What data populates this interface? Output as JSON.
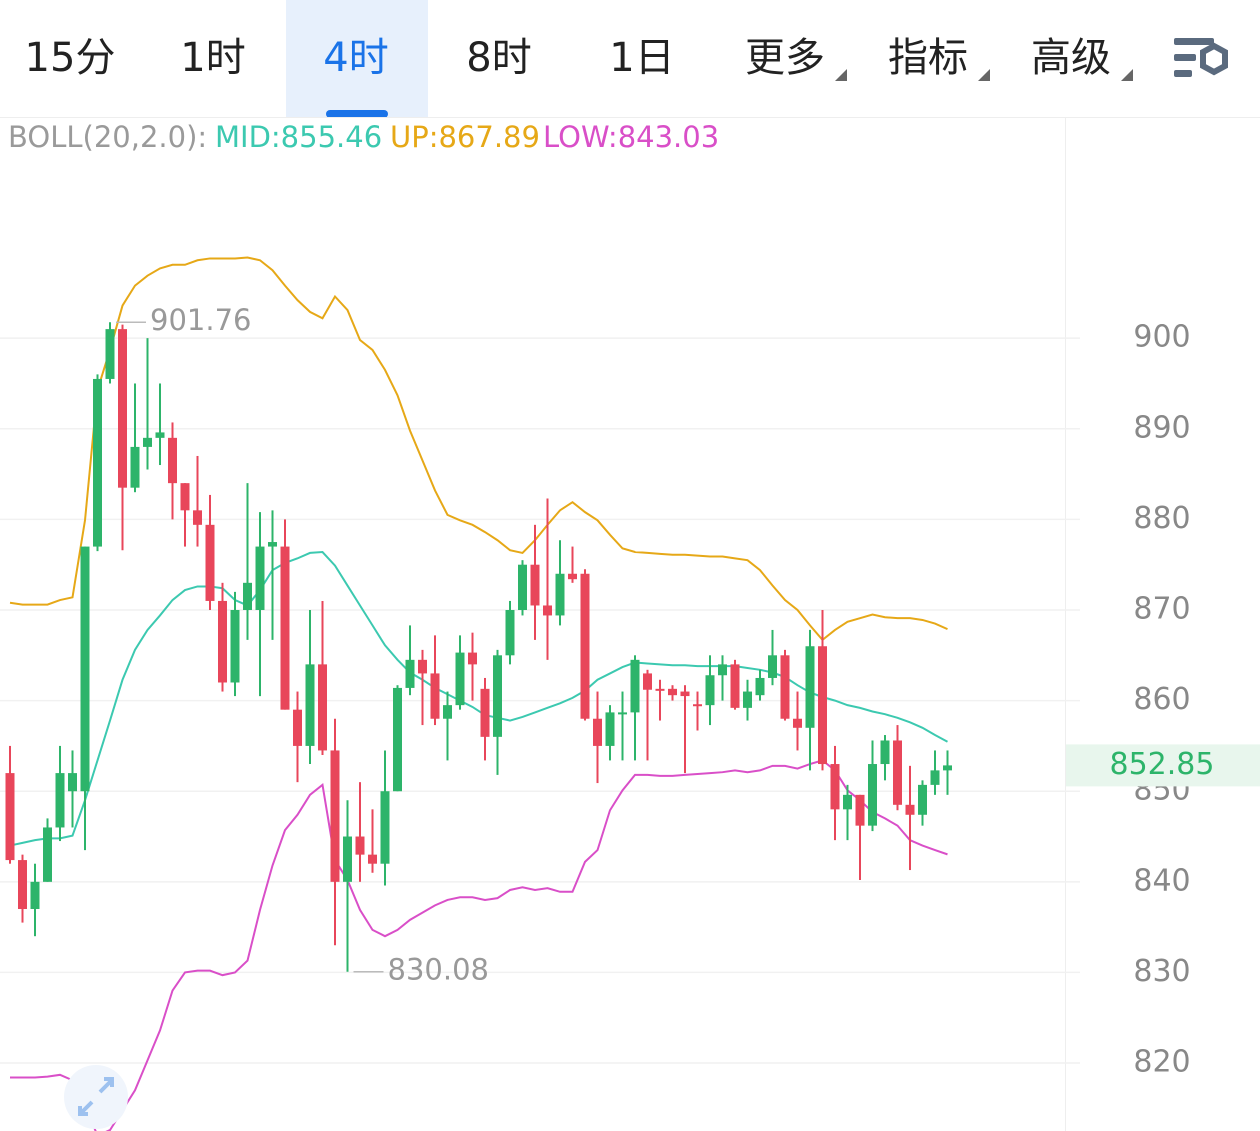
{
  "tabs": [
    {
      "label": "15分",
      "menu": false
    },
    {
      "label": "1时",
      "menu": false
    },
    {
      "label": "4时",
      "menu": false
    },
    {
      "label": "8时",
      "menu": false
    },
    {
      "label": "1日",
      "menu": false
    },
    {
      "label": "更多",
      "menu": true
    },
    {
      "label": "指标",
      "menu": true
    },
    {
      "label": "高级",
      "menu": true
    }
  ],
  "active_tab": 2,
  "chart_data": {
    "type": "candlestick",
    "indicator_label": "BOLL(20,2.0):",
    "ylim": [
      812.5,
      924.3
    ],
    "yticks": [
      820,
      830,
      840,
      850,
      860,
      870,
      880,
      890,
      900
    ],
    "grid": true,
    "up_color": "#2db46a",
    "down_color": "#e8465a",
    "open": [
      852,
      842.4,
      837,
      840,
      846,
      850,
      850,
      877,
      895.5,
      901,
      883.5,
      888,
      889,
      889,
      884,
      881,
      879.4,
      871,
      862,
      870,
      870,
      877,
      877,
      859,
      855,
      864,
      854.5,
      840,
      845,
      843,
      842,
      850,
      861.4,
      864.5,
      863,
      858,
      859.5,
      865.3,
      861.3,
      856,
      865,
      870,
      875,
      870.5,
      869.4,
      874,
      874,
      858,
      855,
      858.5,
      858.7,
      863,
      861.3,
      861.3,
      861,
      859.6,
      859.5,
      862.8,
      864,
      859.2,
      860.6,
      862.5,
      865,
      858,
      857,
      866,
      853,
      848,
      849.6,
      846.2,
      853,
      855.6,
      848.5,
      847.4,
      850.7,
      852.3
    ],
    "high": [
      855,
      843,
      842,
      847,
      855,
      854.5,
      877,
      896,
      901.76,
      901.5,
      895,
      900,
      895,
      890.7,
      884,
      887,
      882.7,
      873,
      872,
      884,
      880.8,
      881,
      880,
      861,
      870,
      871,
      858,
      849,
      851,
      848,
      854.5,
      861.7,
      868.3,
      865.6,
      867.2,
      861,
      867.2,
      867.5,
      862.5,
      865.6,
      871,
      875.5,
      879.4,
      882.3,
      877.7,
      877,
      874.5,
      861,
      859.5,
      861,
      865,
      863.4,
      862.3,
      861.7,
      861.7,
      861,
      865,
      865,
      864.5,
      862.3,
      863.4,
      867.8,
      865.6,
      861,
      867.8,
      870,
      855,
      850.7,
      849.6,
      855.6,
      856.2,
      857.3,
      852.8,
      851.2,
      854.5,
      854.5
    ],
    "low": [
      842,
      835.5,
      834,
      840,
      844.5,
      846,
      843.5,
      876.5,
      895,
      876.6,
      883,
      885.5,
      886,
      880,
      877,
      877,
      870,
      861,
      860.5,
      866.7,
      860.5,
      866.7,
      859,
      851,
      853,
      854,
      833,
      830.08,
      840,
      841,
      839.6,
      850,
      860.6,
      857.3,
      857.3,
      853.4,
      859,
      860,
      853.4,
      851.8,
      864,
      869.4,
      866.7,
      864.5,
      868.3,
      873,
      857.8,
      850.9,
      853.4,
      853.4,
      853.4,
      853.4,
      857.8,
      860,
      852,
      856.7,
      857.3,
      860,
      859,
      857.8,
      860,
      861.7,
      857.8,
      854.5,
      852.3,
      852.3,
      844.6,
      844.6,
      840.2,
      845.6,
      851.2,
      847.9,
      841.3,
      846.2,
      849.6,
      849.6
    ],
    "close": [
      842.4,
      837,
      840,
      846,
      852,
      852,
      877,
      895.5,
      901,
      883.5,
      888,
      889,
      889.6,
      884,
      881,
      879.4,
      871,
      862,
      870,
      873,
      877,
      877.5,
      859,
      855,
      864,
      854.5,
      840,
      845,
      843,
      842,
      850,
      861.4,
      864.5,
      863,
      858,
      859.5,
      865.3,
      864,
      856,
      865,
      870,
      875,
      870.5,
      869.4,
      874,
      873.4,
      858,
      855,
      858.7,
      858.7,
      864.5,
      861.2,
      861.2,
      860.6,
      860.5,
      859.5,
      862.8,
      864,
      859.2,
      861,
      862.5,
      865,
      858,
      857,
      866,
      853,
      848,
      849.6,
      846.2,
      853,
      855.6,
      848.5,
      847.4,
      850.7,
      852.3,
      852.85
    ],
    "bands": [
      {
        "label": "MID:855.46",
        "color": "#3cc9b0",
        "values": [
          844.0,
          844.3,
          844.6,
          844.8,
          844.8,
          845.1,
          849.0,
          853.4,
          857.8,
          862.3,
          865.6,
          867.8,
          869.4,
          871.1,
          872.2,
          872.6,
          872.6,
          872.4,
          871.1,
          870.5,
          872.2,
          874.4,
          875.2,
          875.7,
          876.3,
          876.4,
          874.9,
          872.7,
          870.5,
          868.3,
          866.1,
          864.5,
          863.1,
          862.3,
          861.4,
          860.7,
          860.0,
          859.3,
          858.4,
          858.1,
          857.8,
          858.2,
          858.7,
          859.2,
          859.7,
          860.3,
          861.1,
          862.3,
          863.0,
          863.7,
          864.2,
          864.1,
          864.0,
          863.9,
          863.9,
          863.8,
          863.8,
          863.8,
          863.8,
          863.6,
          863.4,
          863.1,
          862.6,
          861.7,
          860.9,
          860.4,
          860.0,
          859.5,
          859.2,
          858.8,
          858.5,
          858.1,
          857.6,
          857.0,
          856.2,
          855.46
        ]
      },
      {
        "label": "UP:867.89",
        "color": "#e6a817",
        "values": [
          870.8,
          870.6,
          870.6,
          870.6,
          871.1,
          871.4,
          879.9,
          894.3,
          898.7,
          903.6,
          905.8,
          906.9,
          907.7,
          908.1,
          908.1,
          908.6,
          908.8,
          908.8,
          908.8,
          908.9,
          908.6,
          907.5,
          905.8,
          904.2,
          902.9,
          902.2,
          904.6,
          903.1,
          899.8,
          898.7,
          896.5,
          893.7,
          889.8,
          886.5,
          883.2,
          880.5,
          879.9,
          879.4,
          878.6,
          877.7,
          876.6,
          876.3,
          877.7,
          879.4,
          881.0,
          881.9,
          880.8,
          879.9,
          878.3,
          876.8,
          876.4,
          876.3,
          876.2,
          876.1,
          876.1,
          876.0,
          875.9,
          875.9,
          875.7,
          875.5,
          874.4,
          872.7,
          871.1,
          870.0,
          868.3,
          866.7,
          867.8,
          868.7,
          869.1,
          869.5,
          869.2,
          869.1,
          869.1,
          868.9,
          868.5,
          867.89
        ]
      },
      {
        "label": "LOW:843.03",
        "color": "#d94fc8",
        "values": [
          818.4,
          818.4,
          818.4,
          818.5,
          818.7,
          818.1,
          815.3,
          812.0,
          812.6,
          814.8,
          817.0,
          820.3,
          823.6,
          828.0,
          830.0,
          830.2,
          830.2,
          829.7,
          830.0,
          831.3,
          836.9,
          841.8,
          845.7,
          847.4,
          849.6,
          850.7,
          842.4,
          840.2,
          836.9,
          834.7,
          834.0,
          834.7,
          835.8,
          836.6,
          837.4,
          838.0,
          838.3,
          838.3,
          838.0,
          838.2,
          839.1,
          839.4,
          839.1,
          839.3,
          838.9,
          838.9,
          842.2,
          843.5,
          847.9,
          850.1,
          851.8,
          851.8,
          851.7,
          851.7,
          851.8,
          851.9,
          852.0,
          852.1,
          852.3,
          852.1,
          852.3,
          852.8,
          852.8,
          852.5,
          853.0,
          853.4,
          852.3,
          850.1,
          849.0,
          847.7,
          847.0,
          846.2,
          844.6,
          844.0,
          843.5,
          843.03
        ]
      }
    ],
    "annotations": [
      {
        "value": 901.76,
        "kind": "high"
      },
      {
        "value": 830.08,
        "kind": "low"
      }
    ],
    "last_price": 852.85
  }
}
